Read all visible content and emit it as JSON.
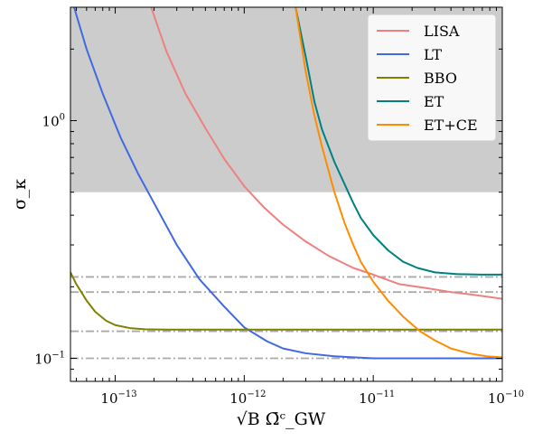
{
  "chart_data": {
    "type": "line",
    "xscale": "log",
    "yscale": "log",
    "xlim": [
      4.5e-14,
      1e-10
    ],
    "ylim": [
      0.08,
      3.0
    ],
    "xlabel": "√B Ω̄ᶜ_GW",
    "ylabel": "σ_κ",
    "x_ticks": [
      {
        "base": "10",
        "exp": "−13"
      },
      {
        "base": "10",
        "exp": "−12"
      },
      {
        "base": "10",
        "exp": "−11"
      },
      {
        "base": "10",
        "exp": "−10"
      }
    ],
    "y_ticks": [
      {
        "base": "10",
        "exp": "0"
      },
      {
        "base": "10",
        "exp": "−1"
      }
    ],
    "shaded_region": {
      "y_min": 0.5,
      "y_max": 3.0,
      "color": "#cccccc"
    },
    "reference_lines": [
      {
        "y": 0.22,
        "color": "#aaaaaa",
        "style": "dashdot"
      },
      {
        "y": 0.19,
        "color": "#aaaaaa",
        "style": "dashdot"
      },
      {
        "y": 0.13,
        "color": "#aaaaaa",
        "style": "dashdot"
      },
      {
        "y": 0.1,
        "color": "#aaaaaa",
        "style": "dashdot"
      }
    ],
    "legend_position": "top-right",
    "series": [
      {
        "name": "LISA",
        "color": "#f08080",
        "x": [
          1.9e-13,
          2.5e-13,
          3.5e-13,
          5e-13,
          7e-13,
          1e-12,
          1.4e-12,
          2e-12,
          3e-12,
          4.5e-12,
          7e-12,
          1e-11,
          1.6e-11,
          2.5e-11,
          4e-11,
          6e-11,
          1e-10
        ],
        "y": [
          3.0,
          1.95,
          1.3,
          0.93,
          0.69,
          0.53,
          0.435,
          0.365,
          0.31,
          0.27,
          0.24,
          0.225,
          0.205,
          0.198,
          0.19,
          0.185,
          0.178
        ]
      },
      {
        "name": "LT",
        "color": "#4169e1",
        "x": [
          4.8e-14,
          6e-14,
          8e-14,
          1.1e-13,
          1.5e-13,
          2e-13,
          3e-13,
          4.5e-13,
          7e-13,
          1e-12,
          1.5e-12,
          2e-12,
          3e-12,
          5e-12,
          1e-11,
          2e-11,
          5e-11,
          1e-10
        ],
        "y": [
          3.0,
          2.0,
          1.3,
          0.85,
          0.6,
          0.45,
          0.3,
          0.215,
          0.165,
          0.135,
          0.118,
          0.11,
          0.105,
          0.102,
          0.1,
          0.1,
          0.1,
          0.1
        ]
      },
      {
        "name": "BBO",
        "color": "#808000",
        "x": [
          4.5e-14,
          5e-14,
          6e-14,
          7e-14,
          8.5e-14,
          1e-13,
          1.3e-13,
          1.7e-13,
          2.5e-13,
          5e-13,
          1e-12,
          1e-11,
          1e-10
        ],
        "y": [
          0.23,
          0.205,
          0.175,
          0.157,
          0.144,
          0.138,
          0.134,
          0.1325,
          0.132,
          0.132,
          0.132,
          0.132,
          0.132
        ]
      },
      {
        "name": "ET",
        "color": "#008080",
        "x": [
          2.5e-12,
          3e-12,
          3.5e-12,
          4e-12,
          5e-12,
          6e-12,
          7e-12,
          8e-12,
          1e-11,
          1.3e-11,
          1.7e-11,
          2.2e-11,
          3e-11,
          4.5e-11,
          7e-11,
          1e-10
        ],
        "y": [
          3.0,
          1.85,
          1.2,
          0.92,
          0.67,
          0.54,
          0.45,
          0.39,
          0.33,
          0.285,
          0.255,
          0.24,
          0.23,
          0.226,
          0.225,
          0.225
        ]
      },
      {
        "name": "ET+CE",
        "color": "#ff8c00",
        "x": [
          2.5e-12,
          3e-12,
          3.5e-12,
          4e-12,
          5e-12,
          6e-12,
          7e-12,
          8e-12,
          1e-11,
          1.3e-11,
          1.7e-11,
          2.3e-11,
          3e-11,
          4e-11,
          5.5e-11,
          7.5e-11,
          1e-10
        ],
        "y": [
          3.0,
          1.6,
          1.05,
          0.78,
          0.5,
          0.37,
          0.3,
          0.255,
          0.21,
          0.175,
          0.15,
          0.13,
          0.119,
          0.11,
          0.105,
          0.102,
          0.101
        ]
      }
    ]
  }
}
